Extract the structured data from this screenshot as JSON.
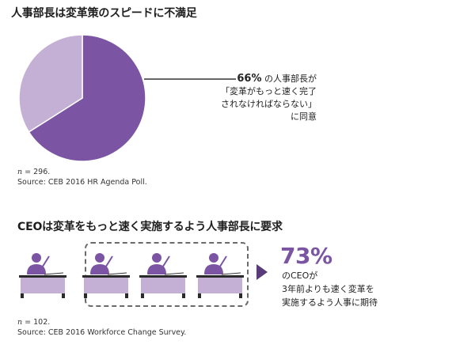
{
  "section1": {
    "title": "人事部長は変革策のスピードに不満足",
    "note_n_label": "n",
    "note_n_value": " = 296.",
    "note_source": "Source: CEB 2016 HR Agenda Poll."
  },
  "pie_annotation": {
    "pct": "66%",
    "line1_suffix": " の人事部長が",
    "line2": "「変革がもっと速く完了",
    "line3": "されなければならない」",
    "line4": "に同意"
  },
  "section2": {
    "title": "CEOは変革をもっと速く実施するよう人事部長に要求",
    "note_n_label": "n",
    "note_n_value": " = 102.",
    "note_source": "Source: CEB 2016 Workforce Change Survey."
  },
  "ceo_annotation": {
    "pct": "73%",
    "line1": "のCEOが",
    "line2": "3年前よりも速く変革を",
    "line3": "実施するよう人事に期待"
  },
  "colors": {
    "primary_purple": "#7b55a3",
    "light_purple": "#c4b0d4",
    "arrow": "#5a3b7a"
  },
  "chart_data": [
    {
      "type": "pie",
      "title": "人事部長は変革策のスピードに不満足",
      "slices": [
        {
          "label": "変革がもっと速く完了されなければならないに同意",
          "value": 66,
          "color": "#7b55a3"
        },
        {
          "label": "",
          "value": 34,
          "color": "#c4b0d4"
        }
      ]
    },
    {
      "type": "pictograph",
      "title": "CEOは変革をもっと速く実施するよう人事部長に要求",
      "icons_total": 4,
      "icons_highlighted": 3,
      "value": 73,
      "unit": "%"
    }
  ]
}
